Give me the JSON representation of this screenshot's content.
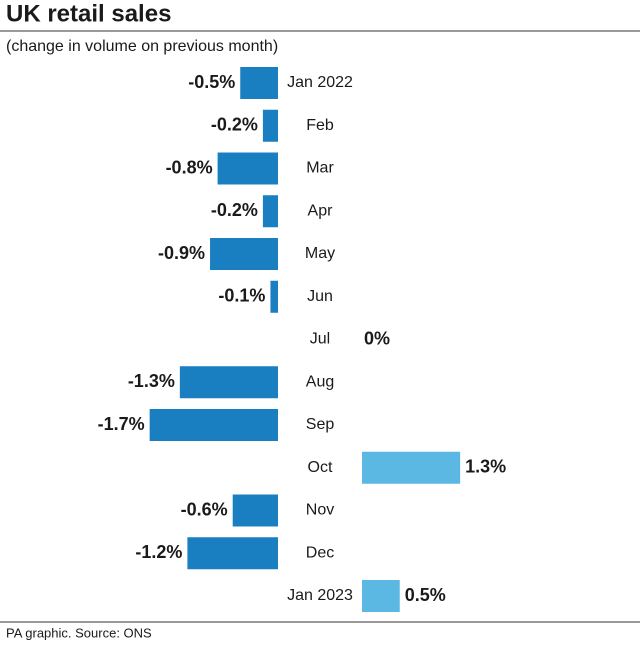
{
  "chart_data": {
    "type": "diverging-bar",
    "title": "UK retail sales",
    "subtitle": "(change in volume on previous month)",
    "source": "PA graphic. Source: ONS",
    "categories": [
      "Jan 2022",
      "Feb",
      "Mar",
      "Apr",
      "May",
      "Jun",
      "Jul",
      "Aug",
      "Sep",
      "Oct",
      "Nov",
      "Dec",
      "Jan 2023"
    ],
    "values": [
      -0.5,
      -0.2,
      -0.8,
      -0.2,
      -0.9,
      -0.1,
      0,
      -1.3,
      -1.7,
      1.3,
      -0.6,
      -1.2,
      0.5
    ],
    "value_labels": [
      "-0.5%",
      "-0.2%",
      "-0.8%",
      "-0.2%",
      "-0.9%",
      "-0.1%",
      "0%",
      "-1.3%",
      "-1.7%",
      "1.3%",
      "-0.6%",
      "-1.2%",
      "0.5%"
    ],
    "colors": {
      "negative": "#1a7fc1",
      "positive": "#5bb8e3"
    }
  }
}
